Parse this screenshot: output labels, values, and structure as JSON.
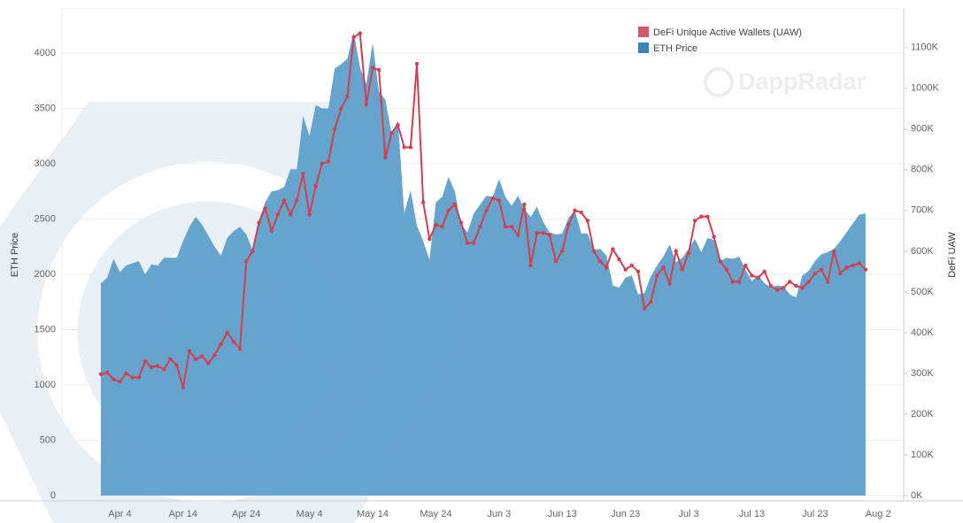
{
  "chart_data": {
    "type": "area_line_dual",
    "categories": [
      null,
      null,
      null,
      "Apr 4",
      null,
      null,
      null,
      null,
      null,
      null,
      null,
      null,
      null,
      "Apr 14",
      null,
      null,
      null,
      null,
      null,
      null,
      null,
      null,
      null,
      "Apr 24",
      null,
      null,
      null,
      null,
      null,
      null,
      null,
      null,
      null,
      "May 4",
      null,
      null,
      null,
      null,
      null,
      null,
      null,
      null,
      null,
      "May 14",
      null,
      null,
      null,
      null,
      null,
      null,
      null,
      null,
      null,
      "May 24",
      null,
      null,
      null,
      null,
      null,
      null,
      null,
      null,
      null,
      "Jun 3",
      null,
      null,
      null,
      null,
      null,
      null,
      null,
      null,
      null,
      "Jun 13",
      null,
      null,
      null,
      null,
      null,
      null,
      null,
      null,
      null,
      "Jun 23",
      null,
      null,
      null,
      null,
      null,
      null,
      null,
      null,
      null,
      "Jul 3",
      null,
      null,
      null,
      null,
      null,
      null,
      null,
      null,
      null,
      "Jul 13",
      null,
      null,
      null,
      null,
      null,
      null,
      null,
      null,
      null,
      "Jul 23",
      null,
      null,
      null,
      null,
      null,
      null,
      null,
      null,
      null,
      "Aug 2"
    ],
    "series": [
      {
        "name": "ETH Price",
        "color": "#5e9fca",
        "legend_color": "#3a82b9",
        "axis": "y",
        "values": [
          1920,
          1970,
          2140,
          2020,
          2080,
          2100,
          2120,
          2000,
          2090,
          2080,
          2150,
          2150,
          2150,
          2300,
          2430,
          2520,
          2450,
          2350,
          2250,
          2170,
          2330,
          2390,
          2430,
          2360,
          2220,
          2490,
          2650,
          2750,
          2760,
          2790,
          2950,
          2950,
          3430,
          3250,
          3530,
          3500,
          3500,
          3860,
          3900,
          3950,
          4190,
          3870,
          3720,
          4090,
          3650,
          3580,
          3270,
          3390,
          2550,
          2760,
          2440,
          2300,
          2130,
          2650,
          2700,
          2880,
          2750,
          2450,
          2380,
          2550,
          2630,
          2710,
          2700,
          2860,
          2700,
          2620,
          2710,
          2590,
          2520,
          2610,
          2470,
          2380,
          2360,
          2370,
          2510,
          2580,
          2370,
          2370,
          2220,
          2230,
          2170,
          1900,
          1880,
          1970,
          1990,
          1820,
          1830,
          1980,
          2080,
          2160,
          2270,
          2110,
          2150,
          2230,
          2320,
          2200,
          2330,
          2310,
          2120,
          2150,
          2140,
          2160,
          2040,
          1940,
          1990,
          1920,
          1880,
          1900,
          1890,
          1820,
          1790,
          1990,
          2030,
          2120,
          2180,
          2200,
          2230,
          2300,
          2380,
          2460,
          2540,
          2550,
          null,
          null
        ]
      },
      {
        "name": "DeFi Unique Active Wallets (UAW)",
        "color": "#d0404f",
        "legend_color": "#d35a6a",
        "axis": "y2",
        "values": [
          298000,
          302000,
          285000,
          280000,
          300000,
          290000,
          290000,
          330000,
          315000,
          318000,
          310000,
          335000,
          320000,
          265000,
          355000,
          335000,
          342000,
          325000,
          345000,
          372000,
          400000,
          378000,
          360000,
          575000,
          600000,
          670000,
          705000,
          650000,
          690000,
          725000,
          690000,
          725000,
          790000,
          690000,
          760000,
          815000,
          820000,
          900000,
          950000,
          980000,
          1125000,
          1135000,
          960000,
          1050000,
          1045000,
          830000,
          890000,
          910000,
          855000,
          855000,
          1060000,
          720000,
          630000,
          665000,
          660000,
          700000,
          715000,
          670000,
          620000,
          620000,
          660000,
          700000,
          730000,
          725000,
          660000,
          660000,
          640000,
          715000,
          565000,
          645000,
          645000,
          640000,
          575000,
          600000,
          665000,
          700000,
          695000,
          675000,
          600000,
          575000,
          560000,
          605000,
          580000,
          555000,
          565000,
          550000,
          460000,
          475000,
          540000,
          560000,
          520000,
          600000,
          555000,
          595000,
          675000,
          685000,
          685000,
          635000,
          575000,
          555000,
          525000,
          525000,
          565000,
          540000,
          535000,
          550000,
          515000,
          505000,
          510000,
          525000,
          515000,
          510000,
          525000,
          545000,
          555000,
          525000,
          600000,
          545000,
          560000,
          565000,
          570000,
          555000,
          null,
          null
        ]
      }
    ],
    "ylabel": "ETH Price",
    "y2label": "DeFi UAW",
    "ylim": [
      0,
      4400
    ],
    "yticks": [
      0,
      500,
      1000,
      1500,
      2000,
      2500,
      3000,
      3500,
      4000
    ],
    "y2lim": [
      0,
      1195000
    ],
    "y2ticks": [
      {
        "value": 0,
        "label": "0K"
      },
      {
        "value": 100000,
        "label": "100K"
      },
      {
        "value": 200000,
        "label": "200K"
      },
      {
        "value": 300000,
        "label": "300K"
      },
      {
        "value": 400000,
        "label": "400K"
      },
      {
        "value": 500000,
        "label": "500K"
      },
      {
        "value": 600000,
        "label": "600K"
      },
      {
        "value": 700000,
        "label": "700K"
      },
      {
        "value": 800000,
        "label": "800K"
      },
      {
        "value": 900000,
        "label": "900K"
      },
      {
        "value": 1000000,
        "label": "1000K"
      },
      {
        "value": 1100000,
        "label": "1100K"
      }
    ],
    "grid": true,
    "legend": "upper right",
    "watermark": "DappRadar"
  }
}
